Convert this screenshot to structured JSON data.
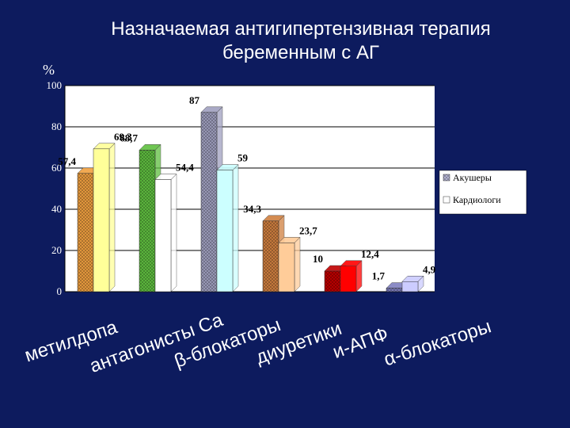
{
  "header": {
    "title_line1": "Назначаемая антигипертензивная терапия",
    "title_line2": "беременным с АГ"
  },
  "colors": {
    "background": "#0d1b5e",
    "plot_area": "#ffffff",
    "grid": "#000000"
  },
  "chart_data": {
    "type": "bar",
    "title": "Назначаемая антигипертензивная терапия беременным с АГ",
    "ylabel": "%",
    "ylim": [
      0,
      100
    ],
    "yticks": [
      0,
      20,
      40,
      60,
      80,
      100
    ],
    "grid": true,
    "legend_position": "right",
    "categories": [
      "метилдопа",
      "антагонисты Са",
      "β-блокаторы",
      "диуретики",
      "и-АПФ",
      "α-блокаторы"
    ],
    "category_label_lines": [
      [
        "метилдопа"
      ],
      [
        "антагонисты Са"
      ],
      [
        "β-блокаторы"
      ],
      [
        "диуретики"
      ],
      [
        "и-АПФ"
      ],
      [
        "α-блокаторы"
      ]
    ],
    "series": [
      {
        "name": "Акушеры",
        "values": [
          57.4,
          68.7,
          87,
          34.3,
          10,
          1.7
        ],
        "labels": [
          "57,4",
          "68,7",
          "87",
          "34,3",
          "10",
          "1,7"
        ]
      },
      {
        "name": "Кардиологи",
        "values": [
          69.3,
          54.4,
          59,
          23.7,
          12.4,
          4.9
        ],
        "labels": [
          "69,3",
          "54,4",
          "59",
          "23,7",
          "12,4",
          "4,9"
        ]
      }
    ],
    "bar_colors": {
      "series1": [
        "#f0a040",
        "#60c040",
        "#a0a0c0",
        "#d08040",
        "#c00000",
        "#8080c0"
      ],
      "series2": [
        "#ffff99",
        "#ffffff",
        "#ccffff",
        "#ffcc99",
        "#ff0000",
        "#ccccff"
      ]
    }
  }
}
